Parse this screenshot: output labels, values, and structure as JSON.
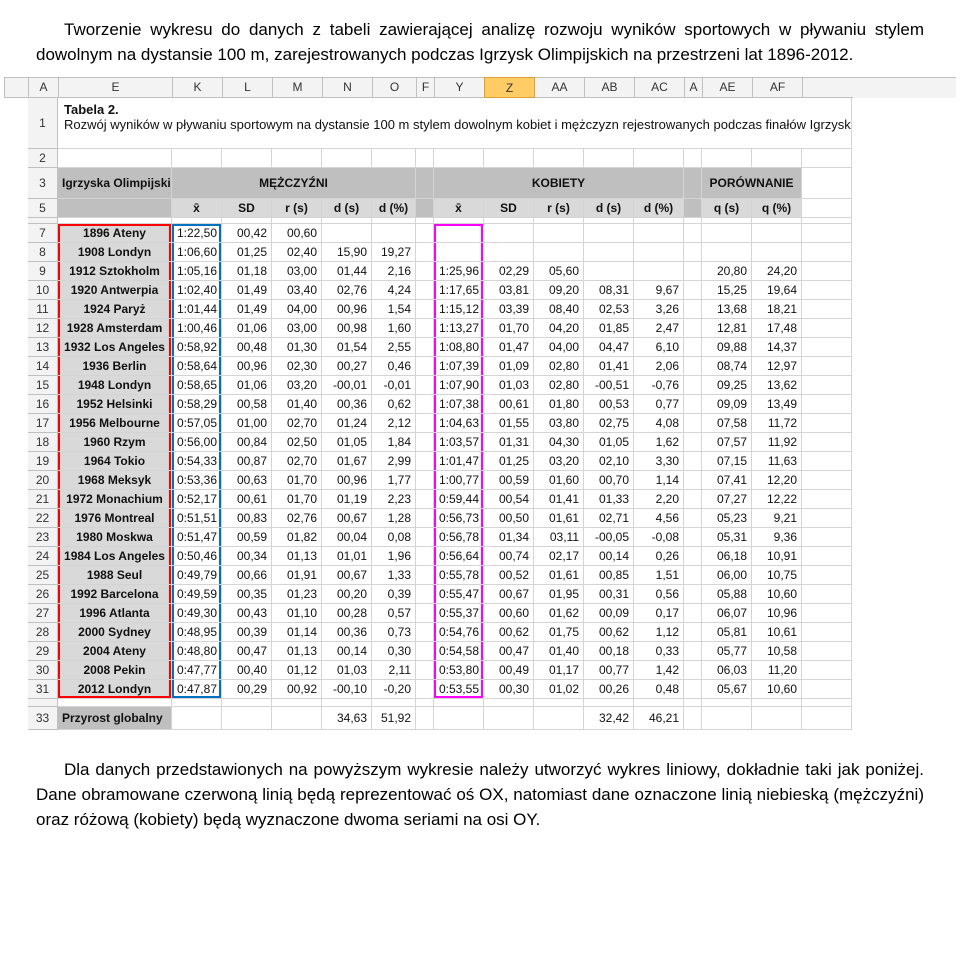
{
  "intro": {
    "p1a": "Tworzenie wykresu do danych z tabeli zawierającej analizę rozwoju wyników sportowych w pływaniu stylem dowolnym na dystansie 100 m, zarejestrowanych podczas Igrzysk Olimpijskich na przestrzeni lat 1896-2012."
  },
  "column_letters": [
    "",
    "A",
    "E",
    "K",
    "L",
    "M",
    "N",
    "O",
    "F",
    "Y",
    "Z",
    "AA",
    "AB",
    "AC",
    "A",
    "AE",
    "AF"
  ],
  "table_caption": {
    "title": "Tabela 2.",
    "desc": "Rozwój wyników w pływaniu sportowym na dystansie 100 m stylem dowolnym kobiet i mężczyzn rejestrowanych podczas finałów Igrzysk Olimpijskich w latach 1896-2012"
  },
  "group_headers": {
    "ig": "Igrzyska Olimpijskie",
    "men": "MĘŻCZYŹNI",
    "women": "KOBIETY",
    "cmp": "PORÓWNANIE"
  },
  "stat_headers": [
    "x̄",
    "SD",
    "r (s)",
    "d (s)",
    "d (%)",
    "x̄",
    "SD",
    "r (s)",
    "d (s)",
    "d (%)",
    "q (s)",
    "q (%)"
  ],
  "rows": [
    {
      "n": 7,
      "label": "1896 Ateny",
      "m": [
        "1:22,50",
        "00,42",
        "00,60",
        "",
        ""
      ],
      "w": [
        "",
        "",
        "",
        "",
        ""
      ],
      "c": [
        "",
        ""
      ]
    },
    {
      "n": 8,
      "label": "1908 Londyn",
      "m": [
        "1:06,60",
        "01,25",
        "02,40",
        "15,90",
        "19,27"
      ],
      "w": [
        "",
        "",
        "",
        "",
        ""
      ],
      "c": [
        "",
        ""
      ]
    },
    {
      "n": 9,
      "label": "1912 Sztokholm",
      "m": [
        "1:05,16",
        "01,18",
        "03,00",
        "01,44",
        "2,16"
      ],
      "w": [
        "1:25,96",
        "02,29",
        "05,60",
        "",
        ""
      ],
      "c": [
        "20,80",
        "24,20"
      ]
    },
    {
      "n": 10,
      "label": "1920 Antwerpia",
      "m": [
        "1:02,40",
        "01,49",
        "03,40",
        "02,76",
        "4,24"
      ],
      "w": [
        "1:17,65",
        "03,81",
        "09,20",
        "08,31",
        "9,67"
      ],
      "c": [
        "15,25",
        "19,64"
      ]
    },
    {
      "n": 11,
      "label": "1924 Paryż",
      "m": [
        "1:01,44",
        "01,49",
        "04,00",
        "00,96",
        "1,54"
      ],
      "w": [
        "1:15,12",
        "03,39",
        "08,40",
        "02,53",
        "3,26"
      ],
      "c": [
        "13,68",
        "18,21"
      ]
    },
    {
      "n": 12,
      "label": "1928 Amsterdam",
      "m": [
        "1:00,46",
        "01,06",
        "03,00",
        "00,98",
        "1,60"
      ],
      "w": [
        "1:13,27",
        "01,70",
        "04,20",
        "01,85",
        "2,47"
      ],
      "c": [
        "12,81",
        "17,48"
      ]
    },
    {
      "n": 13,
      "label": "1932 Los Angeles",
      "m": [
        "0:58,92",
        "00,48",
        "01,30",
        "01,54",
        "2,55"
      ],
      "w": [
        "1:08,80",
        "01,47",
        "04,00",
        "04,47",
        "6,10"
      ],
      "c": [
        "09,88",
        "14,37"
      ]
    },
    {
      "n": 14,
      "label": "1936 Berlin",
      "m": [
        "0:58,64",
        "00,96",
        "02,30",
        "00,27",
        "0,46"
      ],
      "w": [
        "1:07,39",
        "01,09",
        "02,80",
        "01,41",
        "2,06"
      ],
      "c": [
        "08,74",
        "12,97"
      ]
    },
    {
      "n": 15,
      "label": "1948 Londyn",
      "m": [
        "0:58,65",
        "01,06",
        "03,20",
        "-00,01",
        "-0,01"
      ],
      "w": [
        "1:07,90",
        "01,03",
        "02,80",
        "-00,51",
        "-0,76"
      ],
      "c": [
        "09,25",
        "13,62"
      ]
    },
    {
      "n": 16,
      "label": "1952 Helsinki",
      "m": [
        "0:58,29",
        "00,58",
        "01,40",
        "00,36",
        "0,62"
      ],
      "w": [
        "1:07,38",
        "00,61",
        "01,80",
        "00,53",
        "0,77"
      ],
      "c": [
        "09,09",
        "13,49"
      ]
    },
    {
      "n": 17,
      "label": "1956 Melbourne",
      "m": [
        "0:57,05",
        "01,00",
        "02,70",
        "01,24",
        "2,12"
      ],
      "w": [
        "1:04,63",
        "01,55",
        "03,80",
        "02,75",
        "4,08"
      ],
      "c": [
        "07,58",
        "11,72"
      ]
    },
    {
      "n": 18,
      "label": "1960 Rzym",
      "m": [
        "0:56,00",
        "00,84",
        "02,50",
        "01,05",
        "1,84"
      ],
      "w": [
        "1:03,57",
        "01,31",
        "04,30",
        "01,05",
        "1,62"
      ],
      "c": [
        "07,57",
        "11,92"
      ]
    },
    {
      "n": 19,
      "label": "1964 Tokio",
      "m": [
        "0:54,33",
        "00,87",
        "02,70",
        "01,67",
        "2,99"
      ],
      "w": [
        "1:01,47",
        "01,25",
        "03,20",
        "02,10",
        "3,30"
      ],
      "c": [
        "07,15",
        "11,63"
      ]
    },
    {
      "n": 20,
      "label": "1968 Meksyk",
      "m": [
        "0:53,36",
        "00,63",
        "01,70",
        "00,96",
        "1,77"
      ],
      "w": [
        "1:00,77",
        "00,59",
        "01,60",
        "00,70",
        "1,14"
      ],
      "c": [
        "07,41",
        "12,20"
      ]
    },
    {
      "n": 21,
      "label": "1972 Monachium",
      "m": [
        "0:52,17",
        "00,61",
        "01,70",
        "01,19",
        "2,23"
      ],
      "w": [
        "0:59,44",
        "00,54",
        "01,41",
        "01,33",
        "2,20"
      ],
      "c": [
        "07,27",
        "12,22"
      ]
    },
    {
      "n": 22,
      "label": "1976 Montreal",
      "m": [
        "0:51,51",
        "00,83",
        "02,76",
        "00,67",
        "1,28"
      ],
      "w": [
        "0:56,73",
        "00,50",
        "01,61",
        "02,71",
        "4,56"
      ],
      "c": [
        "05,23",
        "9,21"
      ]
    },
    {
      "n": 23,
      "label": "1980 Moskwa",
      "m": [
        "0:51,47",
        "00,59",
        "01,82",
        "00,04",
        "0,08"
      ],
      "w": [
        "0:56,78",
        "01,34",
        "03,11",
        "-00,05",
        "-0,08"
      ],
      "c": [
        "05,31",
        "9,36"
      ]
    },
    {
      "n": 24,
      "label": "1984 Los Angeles",
      "m": [
        "0:50,46",
        "00,34",
        "01,13",
        "01,01",
        "1,96"
      ],
      "w": [
        "0:56,64",
        "00,74",
        "02,17",
        "00,14",
        "0,26"
      ],
      "c": [
        "06,18",
        "10,91"
      ]
    },
    {
      "n": 25,
      "label": "1988 Seul",
      "m": [
        "0:49,79",
        "00,66",
        "01,91",
        "00,67",
        "1,33"
      ],
      "w": [
        "0:55,78",
        "00,52",
        "01,61",
        "00,85",
        "1,51"
      ],
      "c": [
        "06,00",
        "10,75"
      ]
    },
    {
      "n": 26,
      "label": "1992 Barcelona",
      "m": [
        "0:49,59",
        "00,35",
        "01,23",
        "00,20",
        "0,39"
      ],
      "w": [
        "0:55,47",
        "00,67",
        "01,95",
        "00,31",
        "0,56"
      ],
      "c": [
        "05,88",
        "10,60"
      ]
    },
    {
      "n": 27,
      "label": "1996 Atlanta",
      "m": [
        "0:49,30",
        "00,43",
        "01,10",
        "00,28",
        "0,57"
      ],
      "w": [
        "0:55,37",
        "00,60",
        "01,62",
        "00,09",
        "0,17"
      ],
      "c": [
        "06,07",
        "10,96"
      ]
    },
    {
      "n": 28,
      "label": "2000 Sydney",
      "m": [
        "0:48,95",
        "00,39",
        "01,14",
        "00,36",
        "0,73"
      ],
      "w": [
        "0:54,76",
        "00,62",
        "01,75",
        "00,62",
        "1,12"
      ],
      "c": [
        "05,81",
        "10,61"
      ]
    },
    {
      "n": 29,
      "label": "2004 Ateny",
      "m": [
        "0:48,80",
        "00,47",
        "01,13",
        "00,14",
        "0,30"
      ],
      "w": [
        "0:54,58",
        "00,47",
        "01,40",
        "00,18",
        "0,33"
      ],
      "c": [
        "05,77",
        "10,58"
      ]
    },
    {
      "n": 30,
      "label": "2008 Pekin",
      "m": [
        "0:47,77",
        "00,40",
        "01,12",
        "01,03",
        "2,11"
      ],
      "w": [
        "0:53,80",
        "00,49",
        "01,17",
        "00,77",
        "1,42"
      ],
      "c": [
        "06,03",
        "11,20"
      ]
    },
    {
      "n": 31,
      "label": "2012 Londyn",
      "m": [
        "0:47,87",
        "00,29",
        "00,92",
        "-00,10",
        "-0,20"
      ],
      "w": [
        "0:53,55",
        "00,30",
        "01,02",
        "00,26",
        "0,48"
      ],
      "c": [
        "05,67",
        "10,60"
      ]
    }
  ],
  "footer": {
    "n": 33,
    "label": "Przyrost globalny",
    "m": [
      "",
      "",
      "",
      "34,63",
      "51,92"
    ],
    "w": [
      "",
      "",
      "",
      "32,42",
      "46,21"
    ],
    "c": [
      "",
      ""
    ]
  },
  "outro": {
    "p2": "Dla danych przedstawionych na powyższym wykresie należy utworzyć wykres liniowy, dokładnie taki jak poniżej. Dane obramowane czerwoną linią będą reprezentować oś OX, natomiast dane oznaczone linią niebieską (mężczyźni) oraz różową (kobiety) będą wyznaczone dwoma seriami na osi OY."
  },
  "colors": {
    "red_border": "#ff0000",
    "blue_border": "#0070c0",
    "pink_border": "#ff00ff",
    "header_dark": "#bfbfbf",
    "header_light": "#d9d9d9",
    "selected_col": "#ffcc66"
  }
}
